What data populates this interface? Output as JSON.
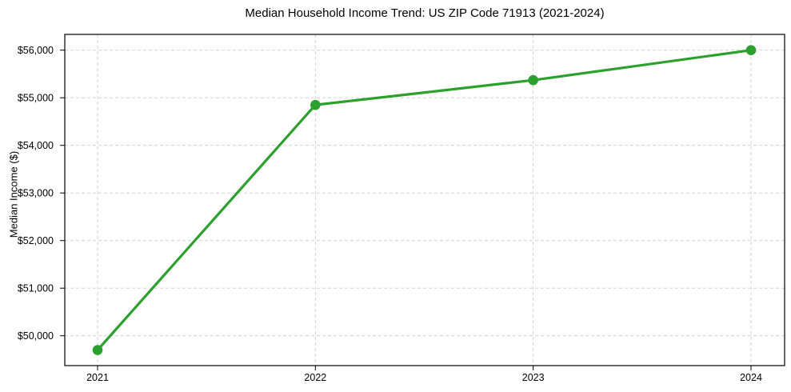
{
  "figure": {
    "background": "#ffffff"
  },
  "chart_data": {
    "type": "line",
    "title": "Median Household Income Trend: US ZIP Code 71913 (2021-2024)",
    "xlabel": "",
    "ylabel": "Median Income ($)",
    "x": [
      2021,
      2022,
      2023,
      2024
    ],
    "xtick_labels": [
      "2021",
      "2022",
      "2023",
      "2024"
    ],
    "y": [
      49700,
      54850,
      55370,
      56000
    ],
    "yticks": [
      50000,
      51000,
      52000,
      53000,
      54000,
      55000,
      56000
    ],
    "ytick_labels": [
      "$50,000",
      "$51,000",
      "$52,000",
      "$53,000",
      "$54,000",
      "$55,000",
      "$56,000"
    ],
    "ylim": [
      49373,
      56331
    ],
    "grid": true,
    "grid_style": "dashed",
    "legend": "none",
    "line_color": "#2ca02c",
    "marker": "circle",
    "grid_color": "#cccccc",
    "axis_color": "#000000",
    "text_color": "#000000"
  }
}
